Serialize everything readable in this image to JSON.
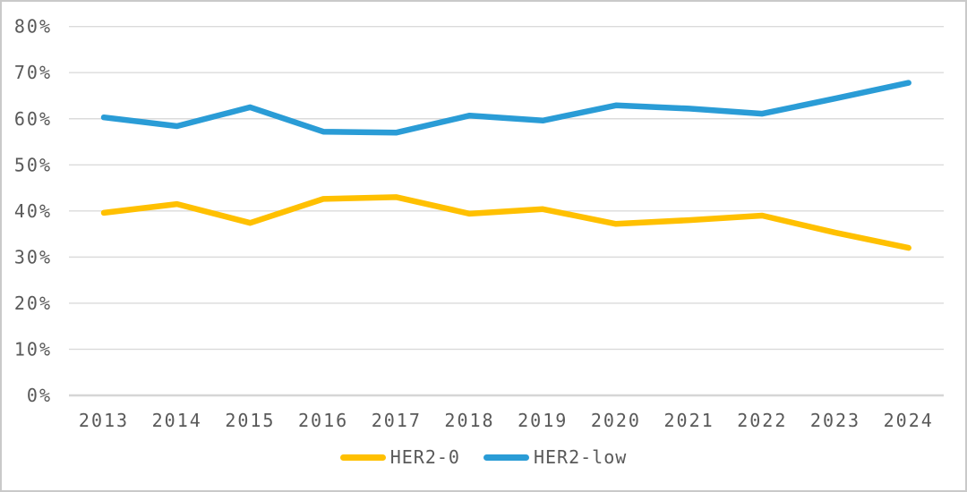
{
  "chart_data": {
    "type": "line",
    "categories": [
      "2013",
      "2014",
      "2015",
      "2016",
      "2017",
      "2018",
      "2019",
      "2020",
      "2021",
      "2022",
      "2023",
      "2024"
    ],
    "series": [
      {
        "id": "her2-0",
        "name": "HER2-0",
        "color": "#FFC000",
        "values": [
          39.6,
          41.5,
          37.4,
          42.6,
          43.0,
          39.4,
          40.4,
          37.2,
          38.0,
          39.0,
          35.3,
          32.0
        ]
      },
      {
        "id": "her2-low",
        "name": "HER2-low",
        "color": "#2A9CD6",
        "values": [
          60.3,
          58.4,
          62.5,
          57.2,
          57.0,
          60.7,
          59.6,
          62.9,
          62.2,
          61.1,
          64.4,
          67.8
        ]
      }
    ],
    "title": "",
    "xlabel": "",
    "ylabel": "",
    "ylim": [
      0,
      80
    ],
    "ytick_step": 10,
    "ytick_labels": [
      "0%",
      "10%",
      "20%",
      "30%",
      "40%",
      "50%",
      "60%",
      "70%",
      "80%"
    ],
    "grid": "horizontal",
    "legend_position": "bottom-center",
    "gridline_color": "#DBDBDB",
    "axis_line_color": "#D6D6D6",
    "tick_label_color": "#595959"
  }
}
